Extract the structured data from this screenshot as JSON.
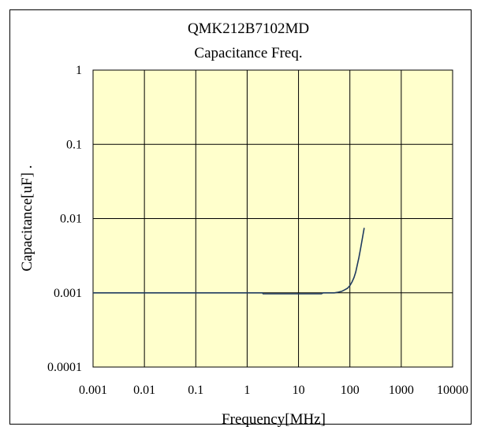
{
  "chart_data": {
    "type": "line",
    "title": "QMK212B7102MD",
    "subtitle": "Capacitance Freq.",
    "xlabel": "Frequency[MHz]",
    "ylabel": "Capacitance[uF] .",
    "x_scale": "log",
    "y_scale": "log",
    "xlim": [
      0.001,
      10000
    ],
    "ylim": [
      0.0001,
      1
    ],
    "x_ticks": [
      "0.001",
      "0.01",
      "0.1",
      "1",
      "10",
      "100",
      "1000",
      "10000"
    ],
    "y_ticks": [
      "1",
      "0.1",
      "0.01",
      "0.001",
      "0.0001"
    ],
    "grid": true,
    "legend": "none",
    "plot_background": "#FFFFCC",
    "line_color": "#1F3A5F",
    "series": [
      {
        "x": [
          0.001,
          0.1,
          1,
          2,
          2.05,
          5,
          10,
          20,
          28,
          30,
          40,
          50,
          60,
          70,
          80,
          90,
          100,
          110,
          120,
          130,
          140,
          150,
          160,
          170,
          180,
          190
        ],
        "y": [
          0.001,
          0.001,
          0.001,
          0.001,
          0.00097,
          0.00097,
          0.00097,
          0.00097,
          0.00097,
          0.001,
          0.001,
          0.001,
          0.00102,
          0.00105,
          0.0011,
          0.00115,
          0.00125,
          0.0014,
          0.0016,
          0.0019,
          0.0024,
          0.003,
          0.0038,
          0.0048,
          0.006,
          0.0075
        ]
      }
    ]
  }
}
